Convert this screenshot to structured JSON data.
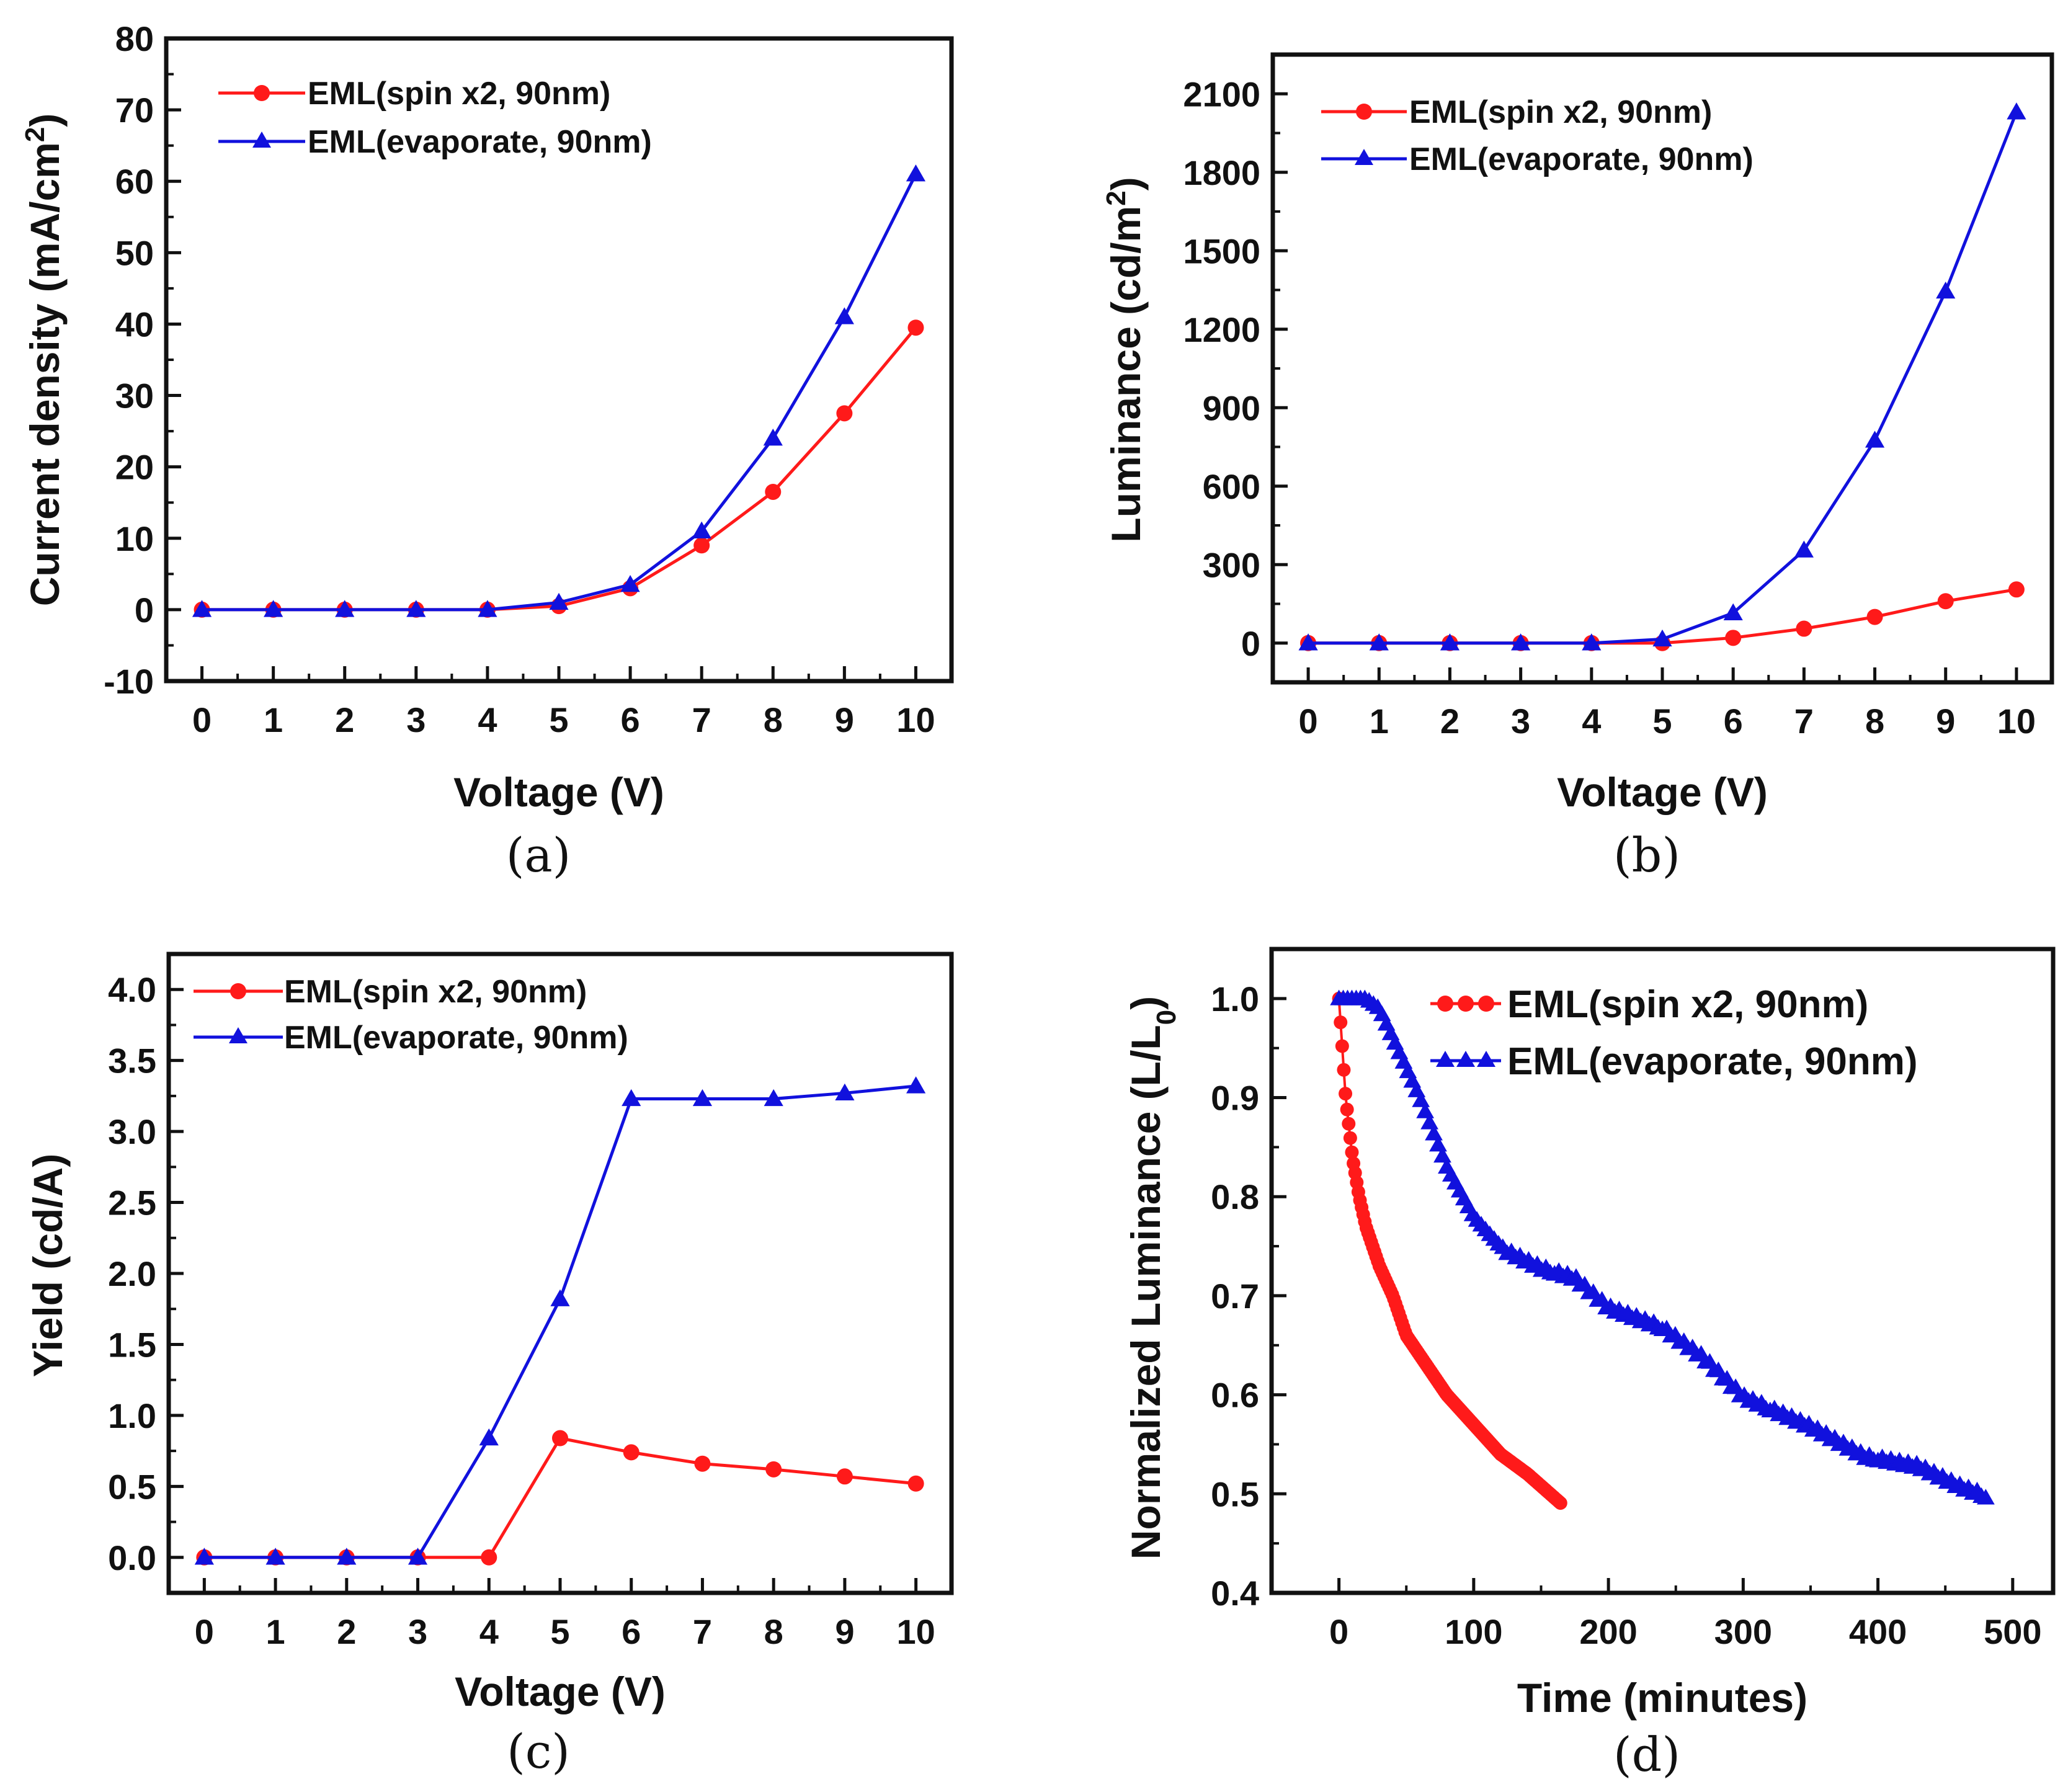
{
  "colors": {
    "spin": "#ff1a1a",
    "evap": "#1111dd",
    "axis": "#111111"
  },
  "legend_labels": {
    "spin_abc": "EML(spin x2, 90nm)",
    "evap_abc": "EML(evaporate, 90nm)",
    "spin_d": "EML(spin x2,  90nm)",
    "evap_d": "EML(evaporate, 90nm)"
  },
  "chart_data": [
    {
      "id": "a",
      "panel_label": "(a)",
      "type": "line",
      "xlabel": "Voltage (V)",
      "ylabel": "Current density (mA/cm",
      "ylabel_sup": "2",
      "ylabel_end": ")",
      "xlim": [
        -0.5,
        10.5
      ],
      "ylim": [
        -10,
        80
      ],
      "xticks": [
        0,
        1,
        2,
        3,
        4,
        5,
        6,
        7,
        8,
        9,
        10
      ],
      "yticks": [
        -10,
        0,
        10,
        20,
        30,
        40,
        50,
        60,
        70,
        80
      ],
      "x": [
        0,
        1,
        2,
        3,
        4,
        5,
        6,
        7,
        8,
        9,
        10
      ],
      "series": [
        {
          "name": "EML(spin x2, 90nm)",
          "marker": "circle",
          "values": [
            0,
            0,
            0,
            0,
            0,
            0.5,
            3,
            9,
            16.5,
            27.5,
            39.5
          ]
        },
        {
          "name": "EML(evaporate, 90nm)",
          "marker": "triangle",
          "values": [
            0,
            0,
            0,
            0,
            0,
            1,
            3.5,
            11,
            24,
            41,
            61
          ]
        }
      ]
    },
    {
      "id": "b",
      "panel_label": "(b)",
      "type": "line",
      "xlabel": "Voltage (V)",
      "ylabel": "Luminance (cd/m",
      "ylabel_sup": "2",
      "ylabel_end": ")",
      "xlim": [
        -0.5,
        10.5
      ],
      "ylim": [
        -150,
        2250
      ],
      "xticks": [
        0,
        1,
        2,
        3,
        4,
        5,
        6,
        7,
        8,
        9,
        10
      ],
      "yticks": [
        0,
        300,
        600,
        900,
        1200,
        1500,
        1800,
        2100
      ],
      "x": [
        0,
        1,
        2,
        3,
        4,
        5,
        6,
        7,
        8,
        9,
        10
      ],
      "series": [
        {
          "name": "EML(spin x2, 90nm)",
          "marker": "circle",
          "values": [
            0,
            0,
            0,
            0,
            0,
            0,
            20,
            55,
            100,
            160,
            205
          ]
        },
        {
          "name": "EML(evaporate, 90nm)",
          "marker": "triangle",
          "values": [
            0,
            0,
            0,
            0,
            0,
            15,
            115,
            355,
            775,
            1345,
            2030
          ]
        }
      ]
    },
    {
      "id": "c",
      "panel_label": "(c)",
      "type": "line",
      "xlabel": "Voltage (V)",
      "ylabel": "Yield (cd/A)",
      "ylabel_sup": "",
      "ylabel_end": "",
      "xlim": [
        -0.5,
        10.5
      ],
      "ylim": [
        -0.25,
        4.25
      ],
      "xticks": [
        0,
        1,
        2,
        3,
        4,
        5,
        6,
        7,
        8,
        9,
        10
      ],
      "yticks": [
        0.0,
        0.5,
        1.0,
        1.5,
        2.0,
        2.5,
        3.0,
        3.5,
        4.0
      ],
      "x": [
        0,
        1,
        2,
        3,
        4,
        5,
        6,
        7,
        8,
        9,
        10
      ],
      "series": [
        {
          "name": "EML(spin x2, 90nm)",
          "marker": "circle",
          "values": [
            0,
            0,
            0,
            0,
            0,
            0.84,
            0.74,
            0.66,
            0.62,
            0.57,
            0.52
          ]
        },
        {
          "name": "EML(evaporate, 90nm)",
          "marker": "triangle",
          "values": [
            0,
            0,
            0,
            0,
            0.84,
            1.82,
            3.23,
            3.23,
            3.23,
            3.27,
            3.32
          ]
        }
      ]
    },
    {
      "id": "d",
      "panel_label": "(d)",
      "type": "scatter",
      "xlabel": "Time (minutes)",
      "ylabel": "Normalized Luminance (L/L",
      "ylabel_sub": "0",
      "ylabel_end": ")",
      "xlim": [
        -50,
        530
      ],
      "ylim": [
        0.4,
        1.05
      ],
      "xticks": [
        0,
        100,
        200,
        300,
        400,
        500
      ],
      "yticks": [
        0.4,
        0.5,
        0.6,
        0.7,
        0.8,
        0.9,
        1.0
      ],
      "series": [
        {
          "name": "EML(spin x2,  90nm)",
          "marker": "circle",
          "curve": {
            "t": [
              0,
              2,
              5,
              10,
              15,
              20,
              30,
              40,
              50,
              60,
              80,
              100,
              120,
              140,
              165
            ],
            "y": [
              1.0,
              0.96,
              0.9,
              0.84,
              0.8,
              0.77,
              0.73,
              0.7,
              0.66,
              0.64,
              0.6,
              0.57,
              0.54,
              0.52,
              0.49
            ]
          }
        },
        {
          "name": "EML(evaporate, 90nm)",
          "marker": "triangle",
          "curve": {
            "t": [
              0,
              20,
              30,
              40,
              60,
              80,
              100,
              120,
              150,
              175,
              200,
              240,
              270,
              300,
              350,
              390,
              430,
              460,
              480
            ],
            "y": [
              1.0,
              1.0,
              0.99,
              0.96,
              0.9,
              0.83,
              0.78,
              0.75,
              0.73,
              0.72,
              0.69,
              0.67,
              0.64,
              0.6,
              0.57,
              0.54,
              0.53,
              0.51,
              0.5
            ]
          }
        }
      ]
    }
  ]
}
